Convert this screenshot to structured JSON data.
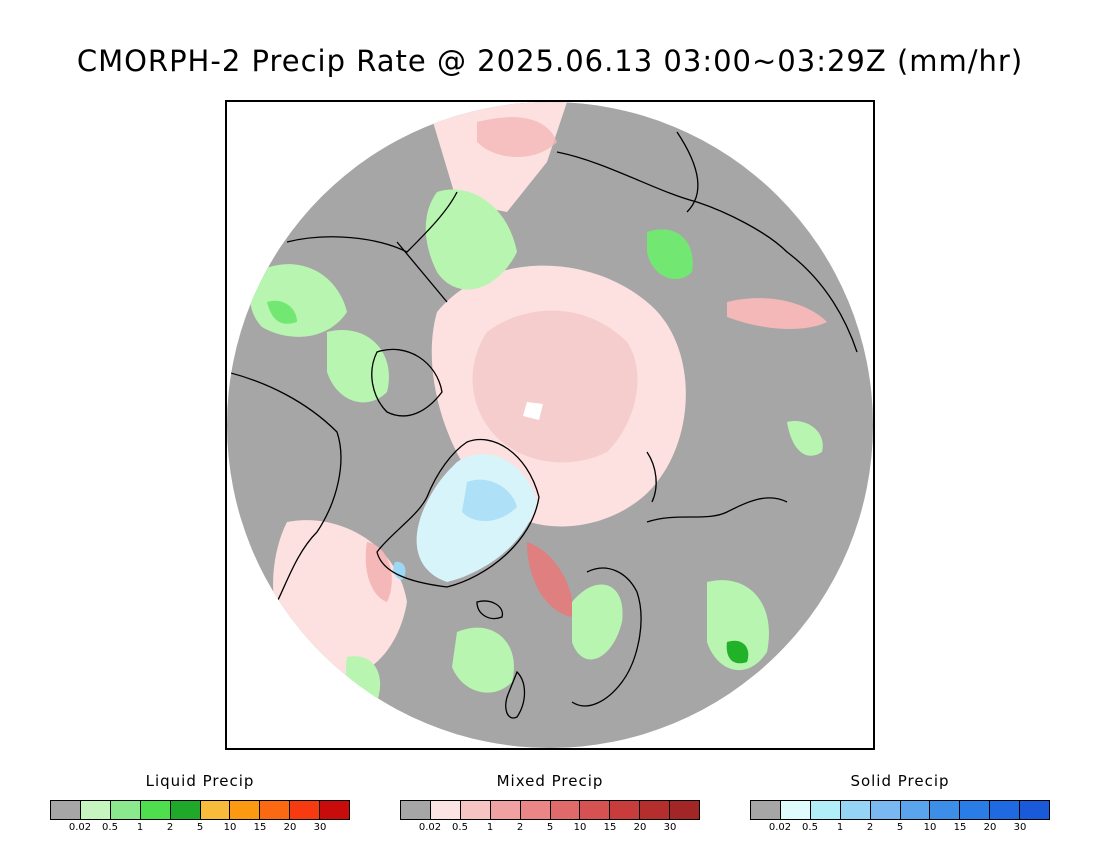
{
  "title": "CMORPH-2 Precip Rate @ 2025.06.13 03:00~03:29Z (mm/hr)",
  "map": {
    "projection": "north-polar-stereographic",
    "background_color": "#a6a6a6",
    "colors": {
      "no_precip": "#a6a6a6",
      "liquid_light": "#b8f5b0",
      "liquid_mid": "#72e872",
      "liquid_heavy": "#22b22a",
      "mixed_light": "#fde0e0",
      "mixed_mid": "#f4b8b8",
      "mixed_heavy": "#e07f7f",
      "solid_light": "#d8f4fb",
      "solid_mid": "#9cd8f5",
      "coast": "#000000"
    }
  },
  "legends": [
    {
      "title": "Liquid Precip",
      "colors": [
        "#a6a6a6",
        "#c6f5c0",
        "#8ce88c",
        "#4ede4e",
        "#1fa82a",
        "#f8bc3c",
        "#fb9a10",
        "#fb6a12",
        "#f73a10",
        "#c80c0c"
      ],
      "ticks": [
        "0.02",
        "0.5",
        "1",
        "2",
        "5",
        "10",
        "15",
        "20",
        "30"
      ]
    },
    {
      "title": "Mixed Precip",
      "colors": [
        "#a6a6a6",
        "#fde4e4",
        "#f7c4c4",
        "#f0a2a2",
        "#ea8686",
        "#e06a6a",
        "#d65252",
        "#c83c3c",
        "#b42e2e",
        "#a32626"
      ],
      "ticks": [
        "0.02",
        "0.5",
        "1",
        "2",
        "5",
        "10",
        "15",
        "20",
        "30"
      ]
    },
    {
      "title": "Solid Precip",
      "colors": [
        "#a6a6a6",
        "#e0fbfb",
        "#b2eef8",
        "#96d4f6",
        "#7ab8f2",
        "#5aa4ee",
        "#3c8ee8",
        "#2a7ce6",
        "#1f6ae0",
        "#1a5ad8"
      ],
      "ticks": [
        "0.02",
        "0.5",
        "1",
        "2",
        "5",
        "10",
        "15",
        "20",
        "30"
      ]
    }
  ]
}
